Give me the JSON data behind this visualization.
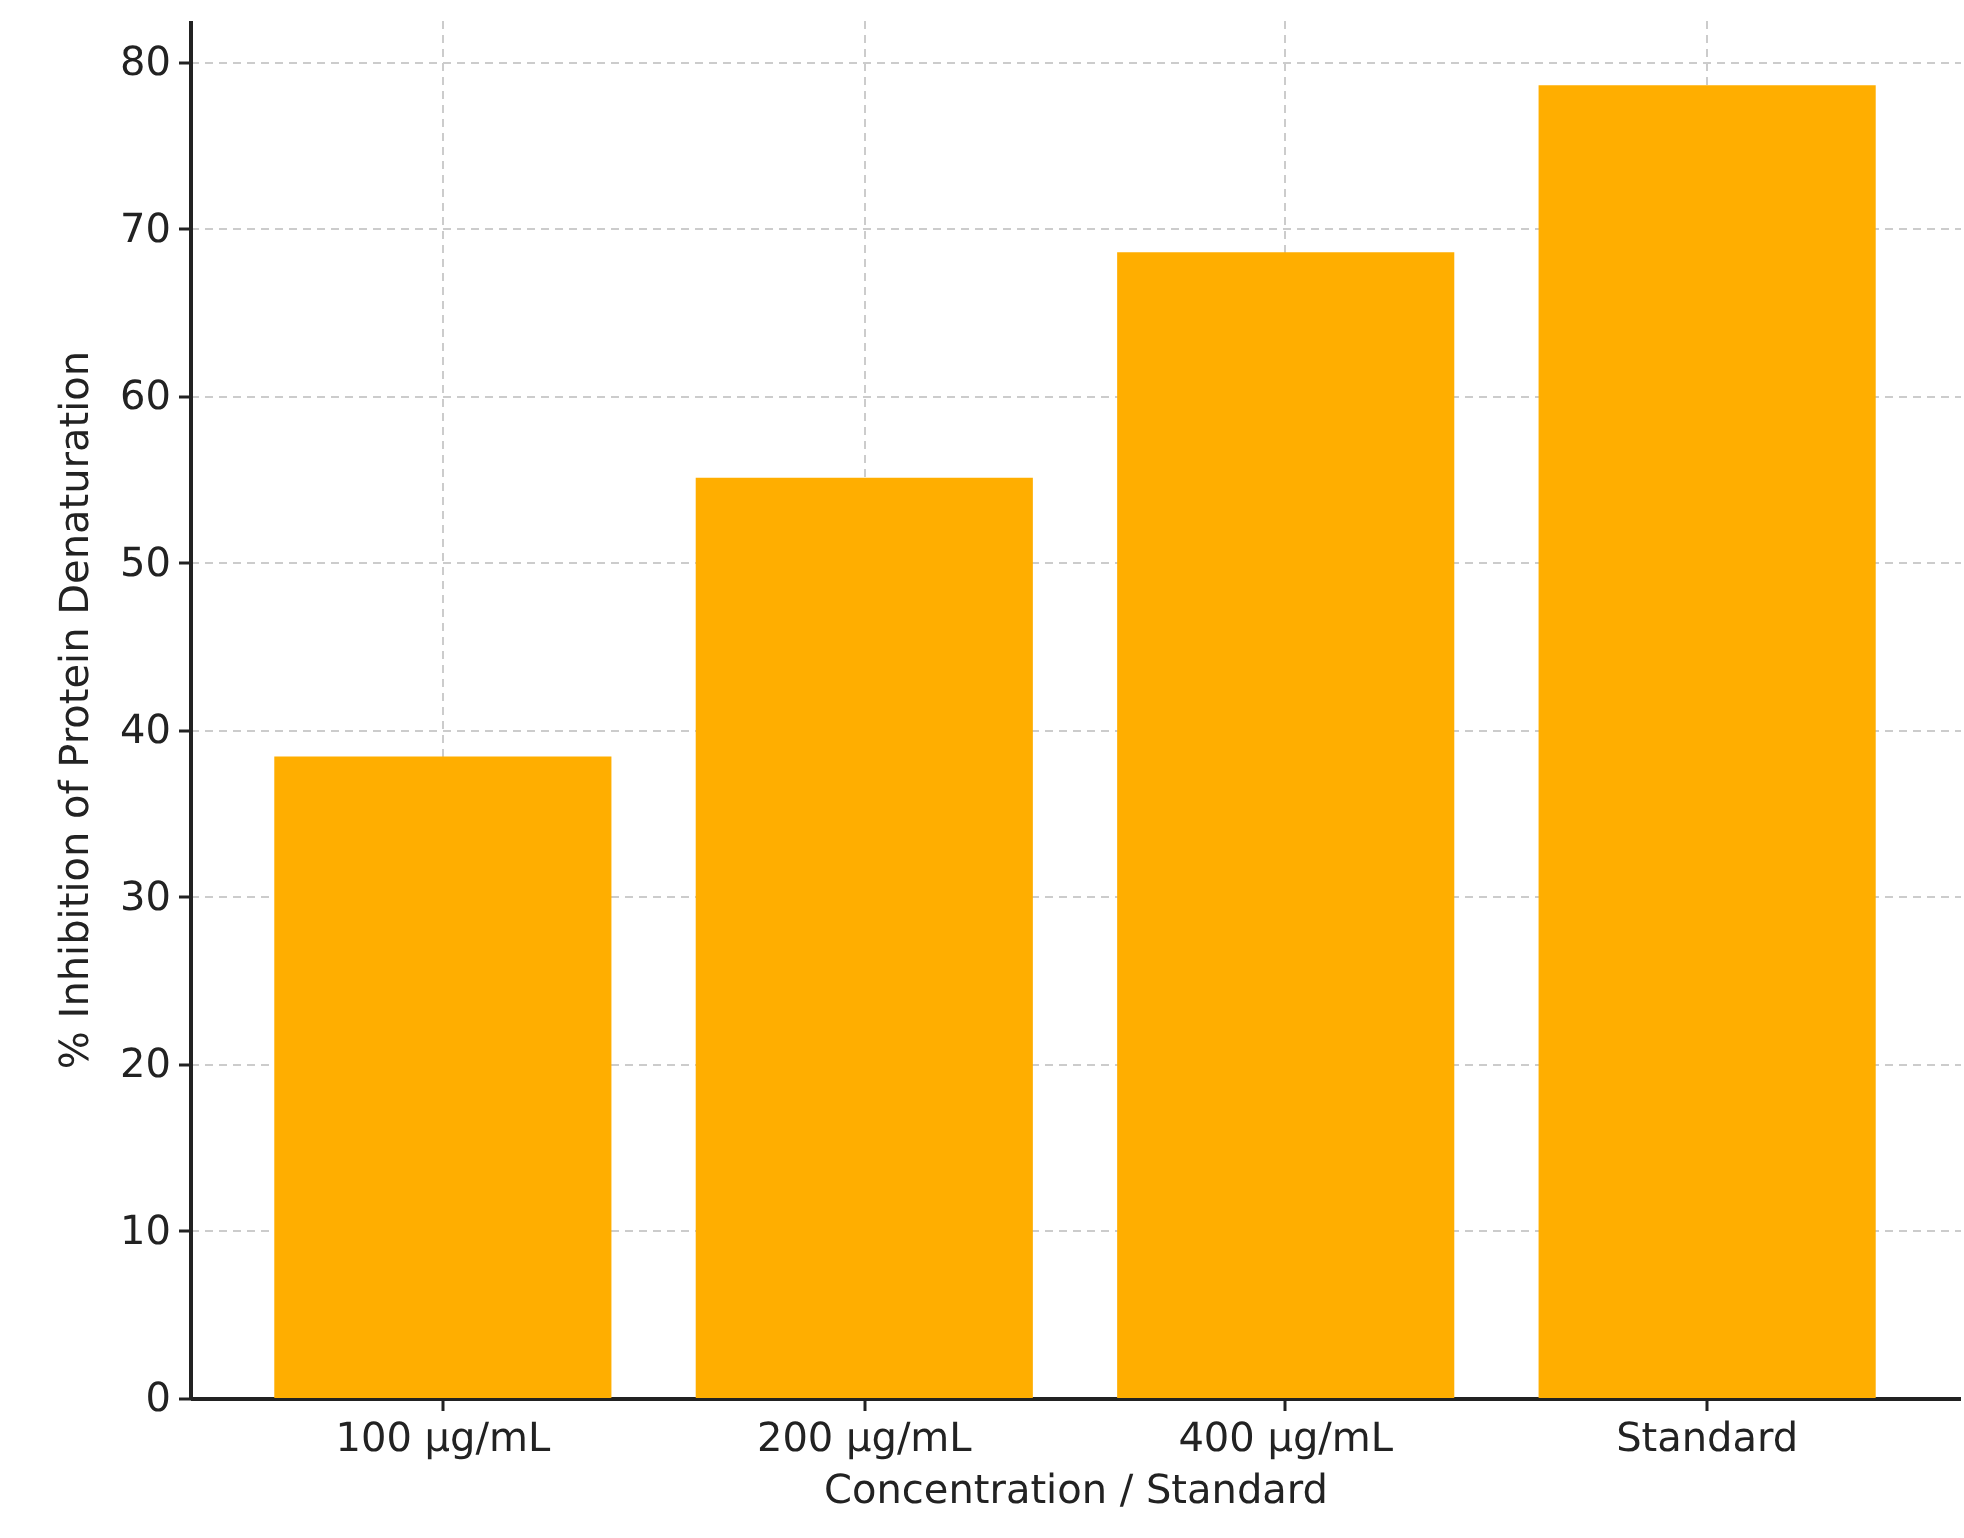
{
  "chart_data": {
    "type": "bar",
    "xlabel": "Concentration / Standard",
    "ylabel": "% Inhibition of Protein Denaturation",
    "categories": [
      "100 µg/mL",
      "200 µg/mL",
      "400 µg/mL",
      "Standard"
    ],
    "values": [
      38.4,
      55.1,
      68.6,
      78.6
    ],
    "color": "#ffae00",
    "ylim": [
      0,
      82.5
    ],
    "yticks": [
      0,
      10,
      20,
      30,
      40,
      50,
      60,
      70,
      80
    ],
    "grid": true,
    "line_style": "dashed"
  }
}
